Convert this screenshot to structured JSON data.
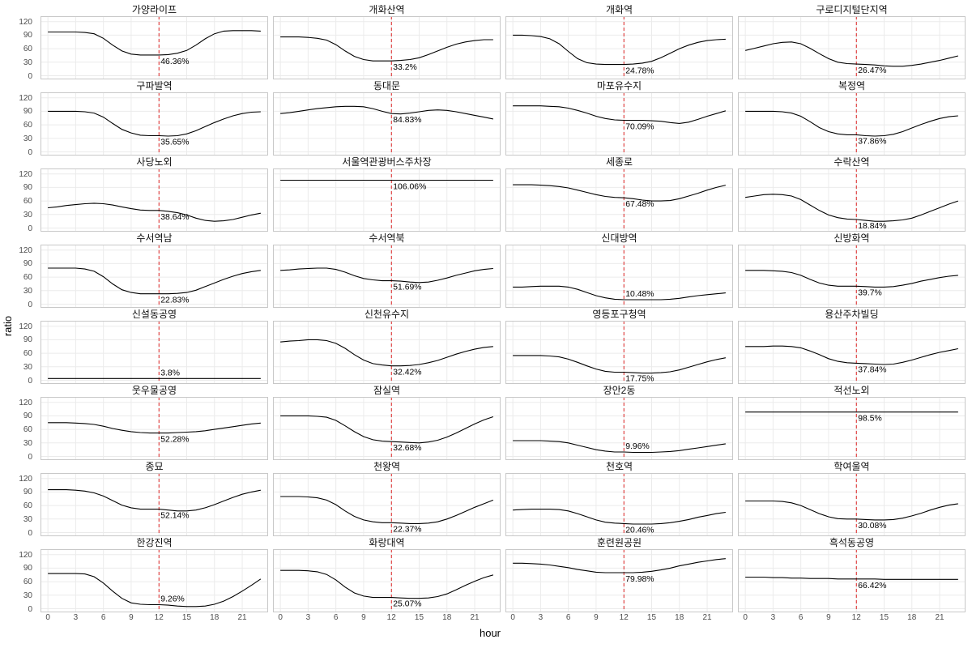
{
  "colors": {
    "line": "#000000",
    "grid": "#ebebeb",
    "panel_border": "#c8c8c8",
    "ref": "#dd2222",
    "background": "#ffffff"
  },
  "chart_data": {
    "type": "line",
    "title": "",
    "xlabel": "hour",
    "ylabel": "ratio",
    "x_ticks": [
      0,
      3,
      6,
      9,
      12,
      15,
      18,
      21
    ],
    "y_ticks": [
      0,
      30,
      60,
      90,
      120
    ],
    "x_range": [
      0,
      23
    ],
    "y_range": [
      0,
      120
    ],
    "grid": true,
    "legend": "none",
    "ref_line": {
      "x": 12,
      "color": "#dd2222",
      "style": "dashed"
    },
    "facets": {
      "rows": 8,
      "cols": 4
    },
    "panels": [
      {
        "title": "가양라이프",
        "label": "46.36%",
        "value_at_12": 46.36,
        "values": [
          97,
          97,
          97,
          97,
          96,
          93,
          83,
          68,
          55,
          48,
          46,
          46,
          46,
          47,
          50,
          56,
          68,
          82,
          93,
          99,
          100,
          100,
          100,
          99
        ]
      },
      {
        "title": "개화산역",
        "label": "33.2%",
        "value_at_12": 33.2,
        "values": [
          86,
          86,
          86,
          85,
          83,
          79,
          69,
          55,
          43,
          36,
          33,
          33,
          33,
          34,
          36,
          40,
          47,
          55,
          63,
          70,
          75,
          78,
          80,
          80
        ]
      },
      {
        "title": "개화역",
        "label": "24.78%",
        "value_at_12": 24.78,
        "values": [
          90,
          90,
          89,
          87,
          82,
          71,
          54,
          38,
          29,
          26,
          25,
          25,
          25,
          26,
          28,
          32,
          40,
          50,
          60,
          68,
          74,
          78,
          80,
          81
        ]
      },
      {
        "title": "구로디지털단지역",
        "label": "26.47%",
        "value_at_12": 26.47,
        "values": [
          56,
          61,
          66,
          71,
          74,
          75,
          71,
          61,
          49,
          38,
          30,
          27,
          26,
          25,
          24,
          22,
          21,
          21,
          23,
          26,
          30,
          34,
          39,
          44
        ]
      },
      {
        "title": "구파발역",
        "label": "35.65%",
        "value_at_12": 35.65,
        "values": [
          90,
          90,
          90,
          90,
          89,
          86,
          77,
          63,
          50,
          42,
          37,
          36,
          36,
          35,
          36,
          40,
          47,
          56,
          65,
          73,
          80,
          85,
          88,
          89
        ]
      },
      {
        "title": "동대문",
        "label": "84.83%",
        "value_at_12": 84.83,
        "values": [
          85,
          87,
          90,
          93,
          96,
          98,
          100,
          101,
          101,
          100,
          96,
          90,
          85,
          84,
          86,
          89,
          92,
          93,
          92,
          89,
          85,
          81,
          77,
          73
        ]
      },
      {
        "title": "마포유수지",
        "label": "70.09%",
        "value_at_12": 70.09,
        "values": [
          102,
          102,
          102,
          102,
          101,
          100,
          97,
          92,
          86,
          79,
          74,
          71,
          70,
          70,
          70,
          69,
          68,
          65,
          63,
          66,
          72,
          79,
          85,
          91
        ]
      },
      {
        "title": "복정역",
        "label": "37.86%",
        "value_at_12": 37.86,
        "values": [
          90,
          90,
          90,
          90,
          89,
          86,
          79,
          67,
          54,
          45,
          40,
          38,
          38,
          36,
          35,
          36,
          39,
          45,
          53,
          61,
          68,
          74,
          78,
          80
        ]
      },
      {
        "title": "사당노외",
        "label": "38.64%",
        "value_at_12": 38.64,
        "values": [
          45,
          47,
          50,
          52,
          54,
          55,
          54,
          51,
          47,
          43,
          40,
          39,
          39,
          37,
          34,
          29,
          22,
          17,
          15,
          16,
          19,
          24,
          29,
          33
        ]
      },
      {
        "title": "서울역관광버스주차장",
        "label": "106.06%",
        "value_at_12": 106.06,
        "values": [
          106,
          106,
          106,
          106,
          106,
          106,
          106,
          106,
          106,
          106,
          106,
          106,
          106,
          106,
          106,
          106,
          106,
          106,
          106,
          106,
          106,
          106,
          106,
          106
        ]
      },
      {
        "title": "세종로",
        "label": "67.48%",
        "value_at_12": 67.48,
        "values": [
          96,
          96,
          96,
          95,
          94,
          92,
          89,
          84,
          79,
          74,
          70,
          68,
          67,
          65,
          62,
          60,
          60,
          61,
          65,
          71,
          77,
          84,
          90,
          95
        ]
      },
      {
        "title": "수락산역",
        "label": "18.84%",
        "value_at_12": 18.84,
        "values": [
          68,
          71,
          74,
          75,
          74,
          71,
          63,
          51,
          39,
          29,
          23,
          20,
          19,
          17,
          15,
          15,
          16,
          18,
          22,
          29,
          37,
          45,
          53,
          60
        ]
      },
      {
        "title": "수서역남",
        "label": "22.83%",
        "value_at_12": 22.83,
        "values": [
          80,
          80,
          80,
          80,
          78,
          73,
          61,
          45,
          32,
          26,
          23,
          23,
          23,
          23,
          24,
          26,
          31,
          39,
          47,
          55,
          62,
          68,
          72,
          75
        ]
      },
      {
        "title": "수서역북",
        "label": "51.69%",
        "value_at_12": 51.69,
        "values": [
          75,
          76,
          78,
          79,
          80,
          80,
          77,
          71,
          63,
          57,
          54,
          52,
          52,
          51,
          49,
          48,
          49,
          53,
          58,
          64,
          69,
          74,
          77,
          79
        ]
      },
      {
        "title": "신대방역",
        "label": "10.48%",
        "value_at_12": 10.48,
        "values": [
          38,
          38,
          39,
          40,
          40,
          40,
          38,
          33,
          26,
          19,
          14,
          11,
          10,
          10,
          10,
          10,
          10,
          11,
          13,
          16,
          19,
          21,
          23,
          25
        ]
      },
      {
        "title": "신방화역",
        "label": "39.7%",
        "value_at_12": 39.7,
        "values": [
          75,
          75,
          75,
          74,
          73,
          70,
          64,
          55,
          47,
          42,
          40,
          40,
          40,
          39,
          38,
          38,
          39,
          42,
          46,
          51,
          55,
          59,
          62,
          64
        ]
      },
      {
        "title": "신설동공영",
        "label": "3.8%",
        "value_at_12": 3.8,
        "values": [
          4,
          4,
          4,
          4,
          4,
          4,
          4,
          4,
          4,
          4,
          4,
          4,
          4,
          4,
          4,
          4,
          4,
          4,
          4,
          4,
          4,
          4,
          4,
          4
        ]
      },
      {
        "title": "신천유수지",
        "label": "32.42%",
        "value_at_12": 32.42,
        "values": [
          85,
          87,
          88,
          90,
          90,
          88,
          82,
          71,
          57,
          45,
          37,
          34,
          32,
          32,
          33,
          35,
          39,
          44,
          51,
          58,
          64,
          69,
          73,
          75
        ]
      },
      {
        "title": "영등포구청역",
        "label": "17.75%",
        "value_at_12": 17.75,
        "values": [
          55,
          55,
          55,
          55,
          54,
          52,
          47,
          40,
          32,
          25,
          20,
          18,
          18,
          17,
          16,
          16,
          17,
          19,
          23,
          29,
          35,
          41,
          46,
          50
        ]
      },
      {
        "title": "용산주차빌딩",
        "label": "37.84%",
        "value_at_12": 37.84,
        "values": [
          75,
          75,
          75,
          76,
          76,
          75,
          72,
          65,
          57,
          48,
          42,
          39,
          38,
          37,
          36,
          35,
          36,
          40,
          45,
          51,
          57,
          62,
          66,
          70
        ]
      },
      {
        "title": "웃우물공영",
        "label": "52.28%",
        "value_at_12": 52.28,
        "values": [
          75,
          75,
          75,
          74,
          73,
          71,
          67,
          62,
          58,
          55,
          53,
          52,
          52,
          52,
          53,
          54,
          55,
          57,
          60,
          63,
          66,
          69,
          72,
          74
        ]
      },
      {
        "title": "잠실역",
        "label": "32.68%",
        "value_at_12": 32.68,
        "values": [
          90,
          90,
          90,
          90,
          89,
          87,
          80,
          68,
          55,
          44,
          37,
          34,
          33,
          32,
          31,
          30,
          32,
          36,
          43,
          52,
          62,
          72,
          81,
          88
        ]
      },
      {
        "title": "장안2동",
        "label": "9.96%",
        "value_at_12": 9.96,
        "values": [
          35,
          35,
          35,
          35,
          34,
          33,
          30,
          25,
          20,
          15,
          12,
          10,
          10,
          9,
          9,
          9,
          10,
          11,
          13,
          16,
          19,
          22,
          25,
          28
        ]
      },
      {
        "title": "적선노외",
        "label": "98.5%",
        "value_at_12": 98.5,
        "values": [
          98.5,
          98.5,
          98.5,
          98.5,
          98.5,
          98.5,
          98.5,
          98.5,
          98.5,
          98.5,
          98.5,
          98.5,
          98.5,
          98.5,
          98.5,
          98.5,
          98.5,
          98.5,
          98.5,
          98.5,
          98.5,
          98.5,
          98.5,
          98.5
        ]
      },
      {
        "title": "종묘",
        "label": "52.14%",
        "value_at_12": 52.14,
        "values": [
          95,
          95,
          95,
          94,
          92,
          88,
          81,
          71,
          61,
          55,
          52,
          52,
          52,
          50,
          48,
          48,
          50,
          55,
          62,
          70,
          78,
          85,
          90,
          94
        ]
      },
      {
        "title": "천왕역",
        "label": "22.37%",
        "value_at_12": 22.37,
        "values": [
          80,
          80,
          80,
          79,
          77,
          72,
          62,
          48,
          36,
          28,
          24,
          22,
          22,
          21,
          20,
          20,
          21,
          24,
          30,
          38,
          47,
          56,
          64,
          72
        ]
      },
      {
        "title": "천호역",
        "label": "20.46%",
        "value_at_12": 20.46,
        "values": [
          50,
          51,
          52,
          52,
          52,
          51,
          48,
          42,
          35,
          28,
          23,
          21,
          20,
          19,
          19,
          19,
          20,
          22,
          25,
          29,
          34,
          38,
          42,
          45
        ]
      },
      {
        "title": "학여울역",
        "label": "30.08%",
        "value_at_12": 30.08,
        "values": [
          70,
          70,
          70,
          70,
          69,
          66,
          60,
          51,
          42,
          35,
          31,
          30,
          30,
          29,
          28,
          28,
          29,
          32,
          37,
          43,
          50,
          56,
          61,
          64
        ]
      },
      {
        "title": "한강진역",
        "label": "9.26%",
        "value_at_12": 9.26,
        "values": [
          78,
          78,
          78,
          78,
          77,
          71,
          57,
          39,
          23,
          13,
          10,
          9,
          9,
          8,
          6,
          5,
          5,
          6,
          10,
          17,
          27,
          39,
          52,
          66
        ]
      },
      {
        "title": "화랑대역",
        "label": "25.07%",
        "value_at_12": 25.07,
        "values": [
          85,
          85,
          85,
          84,
          82,
          76,
          64,
          48,
          35,
          28,
          25,
          25,
          25,
          24,
          23,
          23,
          24,
          27,
          33,
          42,
          52,
          61,
          69,
          75
        ]
      },
      {
        "title": "훈련원공원",
        "label": "79.98%",
        "value_at_12": 79.98,
        "values": [
          101,
          101,
          100,
          99,
          97,
          94,
          91,
          87,
          84,
          81,
          80,
          80,
          80,
          80,
          81,
          83,
          86,
          90,
          95,
          99,
          103,
          106,
          109,
          111
        ]
      },
      {
        "title": "흑석동공영",
        "label": "66.42%",
        "value_at_12": 66.42,
        "values": [
          70,
          70,
          70,
          69,
          69,
          68,
          68,
          67,
          67,
          67,
          66,
          66,
          66,
          66,
          66,
          65,
          65,
          65,
          65,
          65,
          65,
          65,
          65,
          65
        ]
      }
    ]
  }
}
